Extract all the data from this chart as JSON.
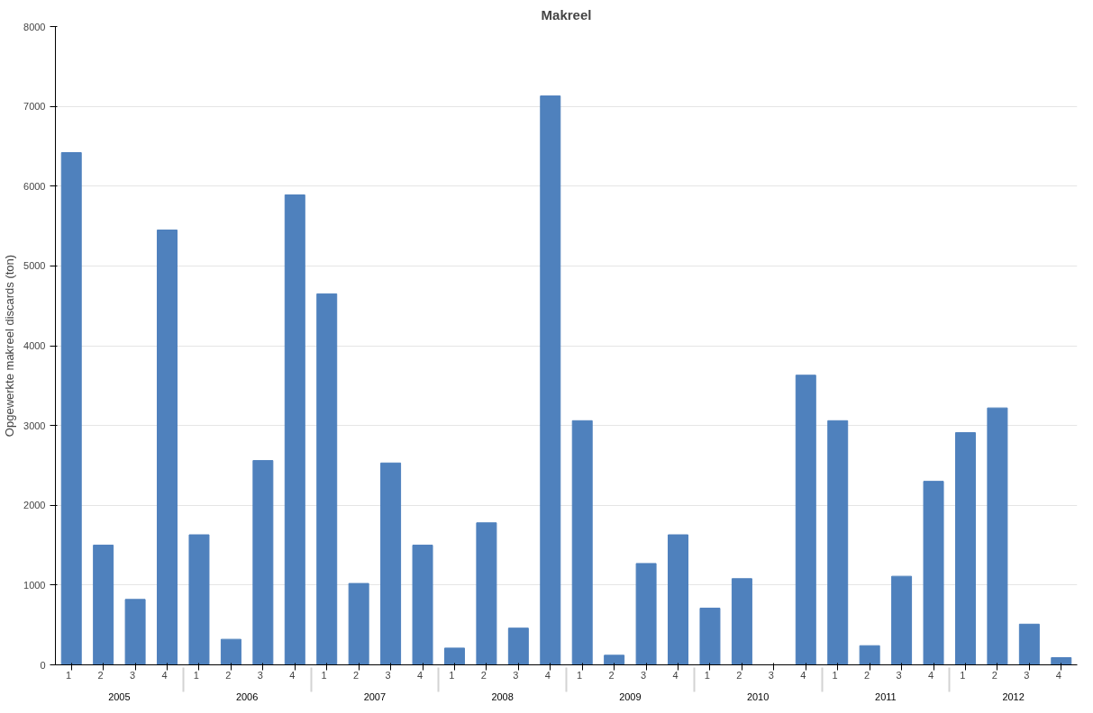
{
  "chart_data": {
    "type": "bar",
    "title": "Makreel",
    "ylabel": "Opgewerkte makreel discards (ton)",
    "categories": [
      "1",
      "2",
      "3",
      "4",
      "1",
      "2",
      "3",
      "4",
      "1",
      "2",
      "3",
      "4",
      "1",
      "2",
      "3",
      "4",
      "1",
      "2",
      "3",
      "4",
      "1",
      "2",
      "3",
      "4",
      "1",
      "2",
      "3",
      "4",
      "1",
      "2",
      "3",
      "4"
    ],
    "annotations": [
      "2005",
      "2006",
      "2007",
      "2008",
      "2009",
      "2010",
      "2011",
      "2012"
    ],
    "values": [
      6420,
      1500,
      820,
      5450,
      1630,
      320,
      2560,
      5890,
      4650,
      1020,
      2530,
      1500,
      210,
      1780,
      460,
      7130,
      3060,
      120,
      1270,
      1630,
      710,
      1080,
      0,
      3630,
      3060,
      240,
      1110,
      2300,
      2910,
      3220,
      510,
      90
    ],
    "color": "#4f81bd",
    "ylim": [
      0,
      8000
    ],
    "yticks": [
      0,
      1000,
      2000,
      3000,
      4000,
      5000,
      6000,
      7000,
      8000
    ],
    "grid": "y"
  }
}
